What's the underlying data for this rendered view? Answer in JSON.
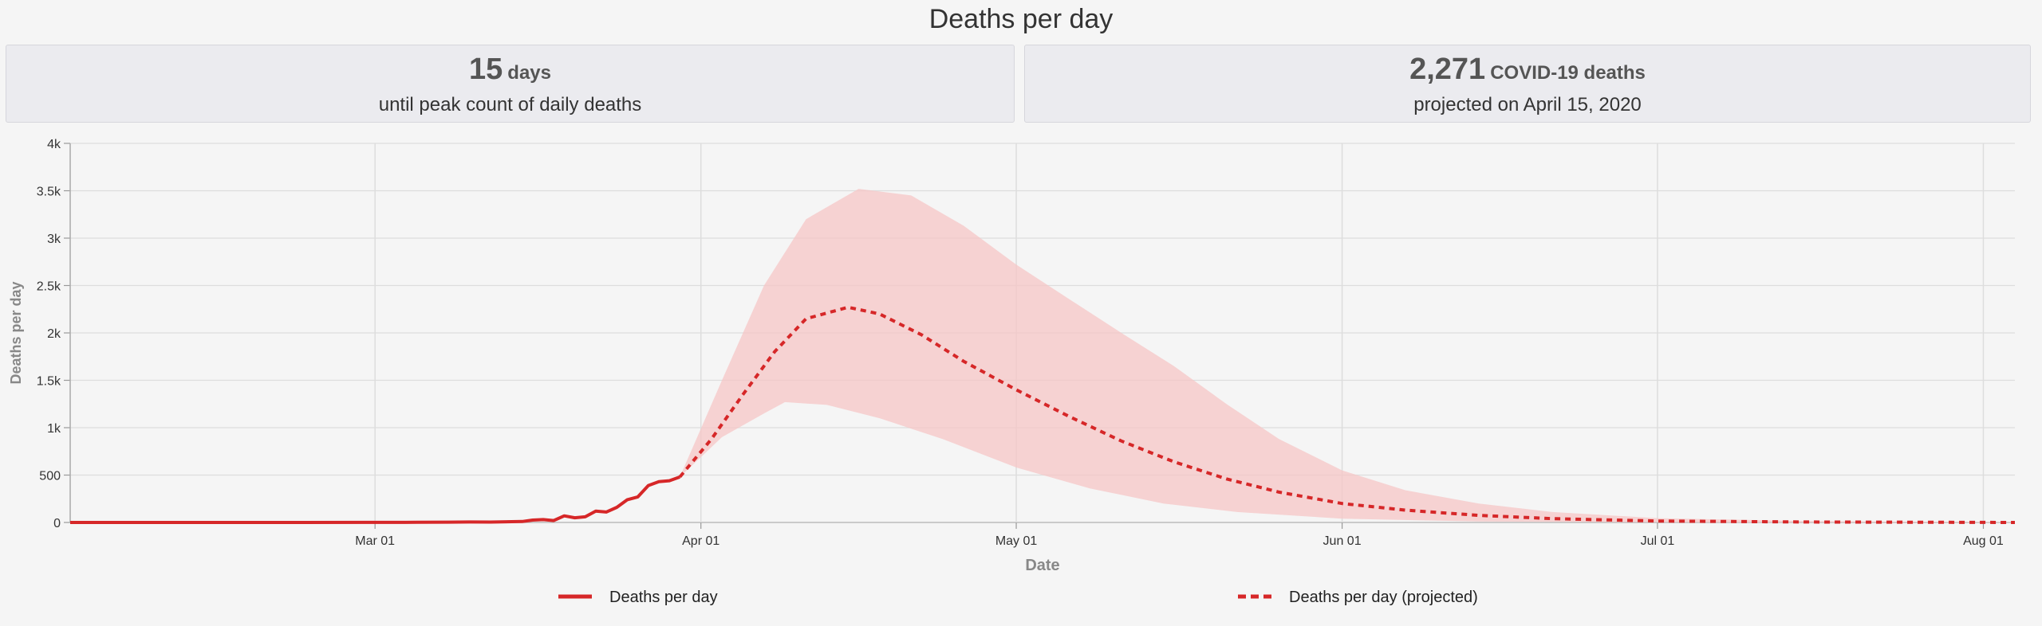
{
  "page": {
    "title": "Deaths per day"
  },
  "stats": [
    {
      "value": "15",
      "unit": "days",
      "caption": "until peak count of daily deaths"
    },
    {
      "value": "2,271",
      "unit": "COVID-19 deaths",
      "caption": "projected on April 15, 2020"
    }
  ],
  "chart_data": {
    "type": "line",
    "title": "",
    "xlabel": "Date",
    "ylabel": "Deaths per day",
    "x_range": [
      "2020-02-01",
      "2020-08-04"
    ],
    "ylim": [
      0,
      4000
    ],
    "y_ticks": [
      0,
      500,
      1000,
      1500,
      2000,
      2500,
      3000,
      3500,
      4000
    ],
    "y_tick_labels": [
      "0",
      "500",
      "1k",
      "1.5k",
      "2k",
      "2.5k",
      "3k",
      "3.5k",
      "4k"
    ],
    "x_ticks": [
      "2020-03-01",
      "2020-04-01",
      "2020-05-01",
      "2020-06-01",
      "2020-07-01",
      "2020-08-01"
    ],
    "x_tick_labels": [
      "Mar 01",
      "Apr 01",
      "May 01",
      "Jun 01",
      "Jul 01",
      "Aug 01"
    ],
    "grid": true,
    "legend_position": "bottom-center",
    "series": [
      {
        "name": "Deaths per day",
        "style": "solid",
        "color": "#d62728",
        "points": [
          [
            "2020-02-01",
            0
          ],
          [
            "2020-02-15",
            0
          ],
          [
            "2020-02-29",
            1
          ],
          [
            "2020-03-05",
            2
          ],
          [
            "2020-03-08",
            3
          ],
          [
            "2020-03-10",
            5
          ],
          [
            "2020-03-12",
            4
          ],
          [
            "2020-03-14",
            8
          ],
          [
            "2020-03-15",
            10
          ],
          [
            "2020-03-16",
            25
          ],
          [
            "2020-03-17",
            30
          ],
          [
            "2020-03-18",
            20
          ],
          [
            "2020-03-19",
            70
          ],
          [
            "2020-03-20",
            50
          ],
          [
            "2020-03-21",
            60
          ],
          [
            "2020-03-22",
            120
          ],
          [
            "2020-03-23",
            110
          ],
          [
            "2020-03-24",
            160
          ],
          [
            "2020-03-25",
            240
          ],
          [
            "2020-03-26",
            270
          ],
          [
            "2020-03-27",
            390
          ],
          [
            "2020-03-28",
            430
          ],
          [
            "2020-03-29",
            440
          ],
          [
            "2020-03-30",
            480
          ]
        ]
      },
      {
        "name": "Deaths per day (projected)",
        "style": "dashed",
        "color": "#d62728",
        "points": [
          [
            "2020-03-30",
            480
          ],
          [
            "2020-04-02",
            880
          ],
          [
            "2020-04-05",
            1350
          ],
          [
            "2020-04-08",
            1800
          ],
          [
            "2020-04-11",
            2150
          ],
          [
            "2020-04-15",
            2271
          ],
          [
            "2020-04-18",
            2200
          ],
          [
            "2020-04-22",
            1980
          ],
          [
            "2020-04-26",
            1700
          ],
          [
            "2020-05-01",
            1400
          ],
          [
            "2020-05-06",
            1120
          ],
          [
            "2020-05-11",
            860
          ],
          [
            "2020-05-16",
            640
          ],
          [
            "2020-05-21",
            460
          ],
          [
            "2020-05-26",
            320
          ],
          [
            "2020-06-01",
            200
          ],
          [
            "2020-06-07",
            130
          ],
          [
            "2020-06-14",
            75
          ],
          [
            "2020-06-21",
            40
          ],
          [
            "2020-07-01",
            15
          ],
          [
            "2020-07-15",
            5
          ],
          [
            "2020-08-04",
            0
          ]
        ]
      }
    ],
    "uncertainty_band": {
      "color": "#f5c6c6",
      "upper": [
        [
          "2020-03-30",
          480
        ],
        [
          "2020-04-03",
          1500
        ],
        [
          "2020-04-07",
          2500
        ],
        [
          "2020-04-11",
          3200
        ],
        [
          "2020-04-16",
          3520
        ],
        [
          "2020-04-21",
          3450
        ],
        [
          "2020-04-26",
          3130
        ],
        [
          "2020-05-01",
          2720
        ],
        [
          "2020-05-06",
          2360
        ],
        [
          "2020-05-11",
          2000
        ],
        [
          "2020-05-16",
          1650
        ],
        [
          "2020-05-21",
          1250
        ],
        [
          "2020-05-26",
          880
        ],
        [
          "2020-06-01",
          550
        ],
        [
          "2020-06-07",
          340
        ],
        [
          "2020-06-14",
          200
        ],
        [
          "2020-06-21",
          110
        ],
        [
          "2020-07-01",
          45
        ],
        [
          "2020-07-15",
          15
        ],
        [
          "2020-08-04",
          3
        ]
      ],
      "lower": [
        [
          "2020-03-30",
          480
        ],
        [
          "2020-04-03",
          900
        ],
        [
          "2020-04-07",
          1150
        ],
        [
          "2020-04-09",
          1270
        ],
        [
          "2020-04-13",
          1240
        ],
        [
          "2020-04-18",
          1100
        ],
        [
          "2020-04-24",
          880
        ],
        [
          "2020-05-01",
          580
        ],
        [
          "2020-05-08",
          360
        ],
        [
          "2020-05-15",
          200
        ],
        [
          "2020-05-22",
          110
        ],
        [
          "2020-06-01",
          40
        ],
        [
          "2020-06-14",
          10
        ],
        [
          "2020-07-01",
          2
        ],
        [
          "2020-08-04",
          0
        ]
      ]
    }
  }
}
